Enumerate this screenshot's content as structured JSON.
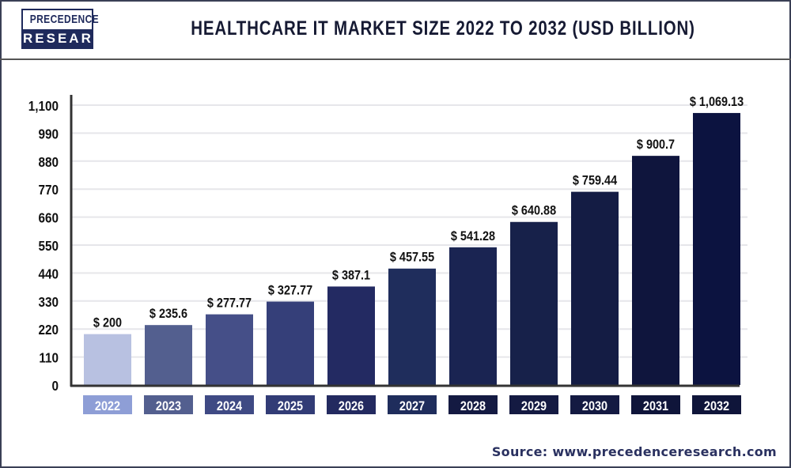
{
  "header": {
    "logo_line1": "PRECEDENCE",
    "logo_line2": "RESEARCH",
    "title": "HEALTHCARE IT MARKET SIZE 2022 TO 2032 (USD BILLION)"
  },
  "source": "Source: www.precedenceresearch.com",
  "chart_data": {
    "type": "bar",
    "title": "HEALTHCARE IT MARKET SIZE 2022 TO 2032 (USD BILLION)",
    "xlabel": "",
    "ylabel": "",
    "ylim": [
      0,
      1100
    ],
    "yticks": [
      0,
      110,
      220,
      330,
      440,
      550,
      660,
      770,
      880,
      990,
      1100
    ],
    "ytick_labels": [
      "0",
      "110",
      "220",
      "330",
      "440",
      "550",
      "660",
      "770",
      "880",
      "990",
      "1,100"
    ],
    "grid": true,
    "categories": [
      "2022",
      "2023",
      "2024",
      "2025",
      "2026",
      "2027",
      "2028",
      "2029",
      "2030",
      "2031",
      "2032"
    ],
    "values": [
      200,
      235.6,
      277.77,
      327.77,
      387.1,
      457.55,
      541.28,
      640.88,
      759.44,
      900.7,
      1069.13
    ],
    "data_labels": [
      "$ 200",
      "$ 235.6",
      "$ 277.77",
      "$ 327.77",
      "$ 387.1",
      "$ 457.55",
      "$ 541.28",
      "$ 640.88",
      "$ 759.44",
      "$ 900.7",
      "$ 1,069.13"
    ],
    "bar_colors": [
      "#b8c1e1",
      "#535f8f",
      "#454f88",
      "#353f79",
      "#232a62",
      "#1f2d5c",
      "#1a2452",
      "#17214a",
      "#141c44",
      "#0f153d",
      "#0c1340"
    ],
    "label_box_colors": [
      "#8e9ed6",
      "#535f8f",
      "#3f4a84",
      "#323c76",
      "#232a60",
      "#1f2d5c",
      "#141a42",
      "#141a42",
      "#141a42",
      "#0f153a",
      "#0f153a"
    ]
  }
}
